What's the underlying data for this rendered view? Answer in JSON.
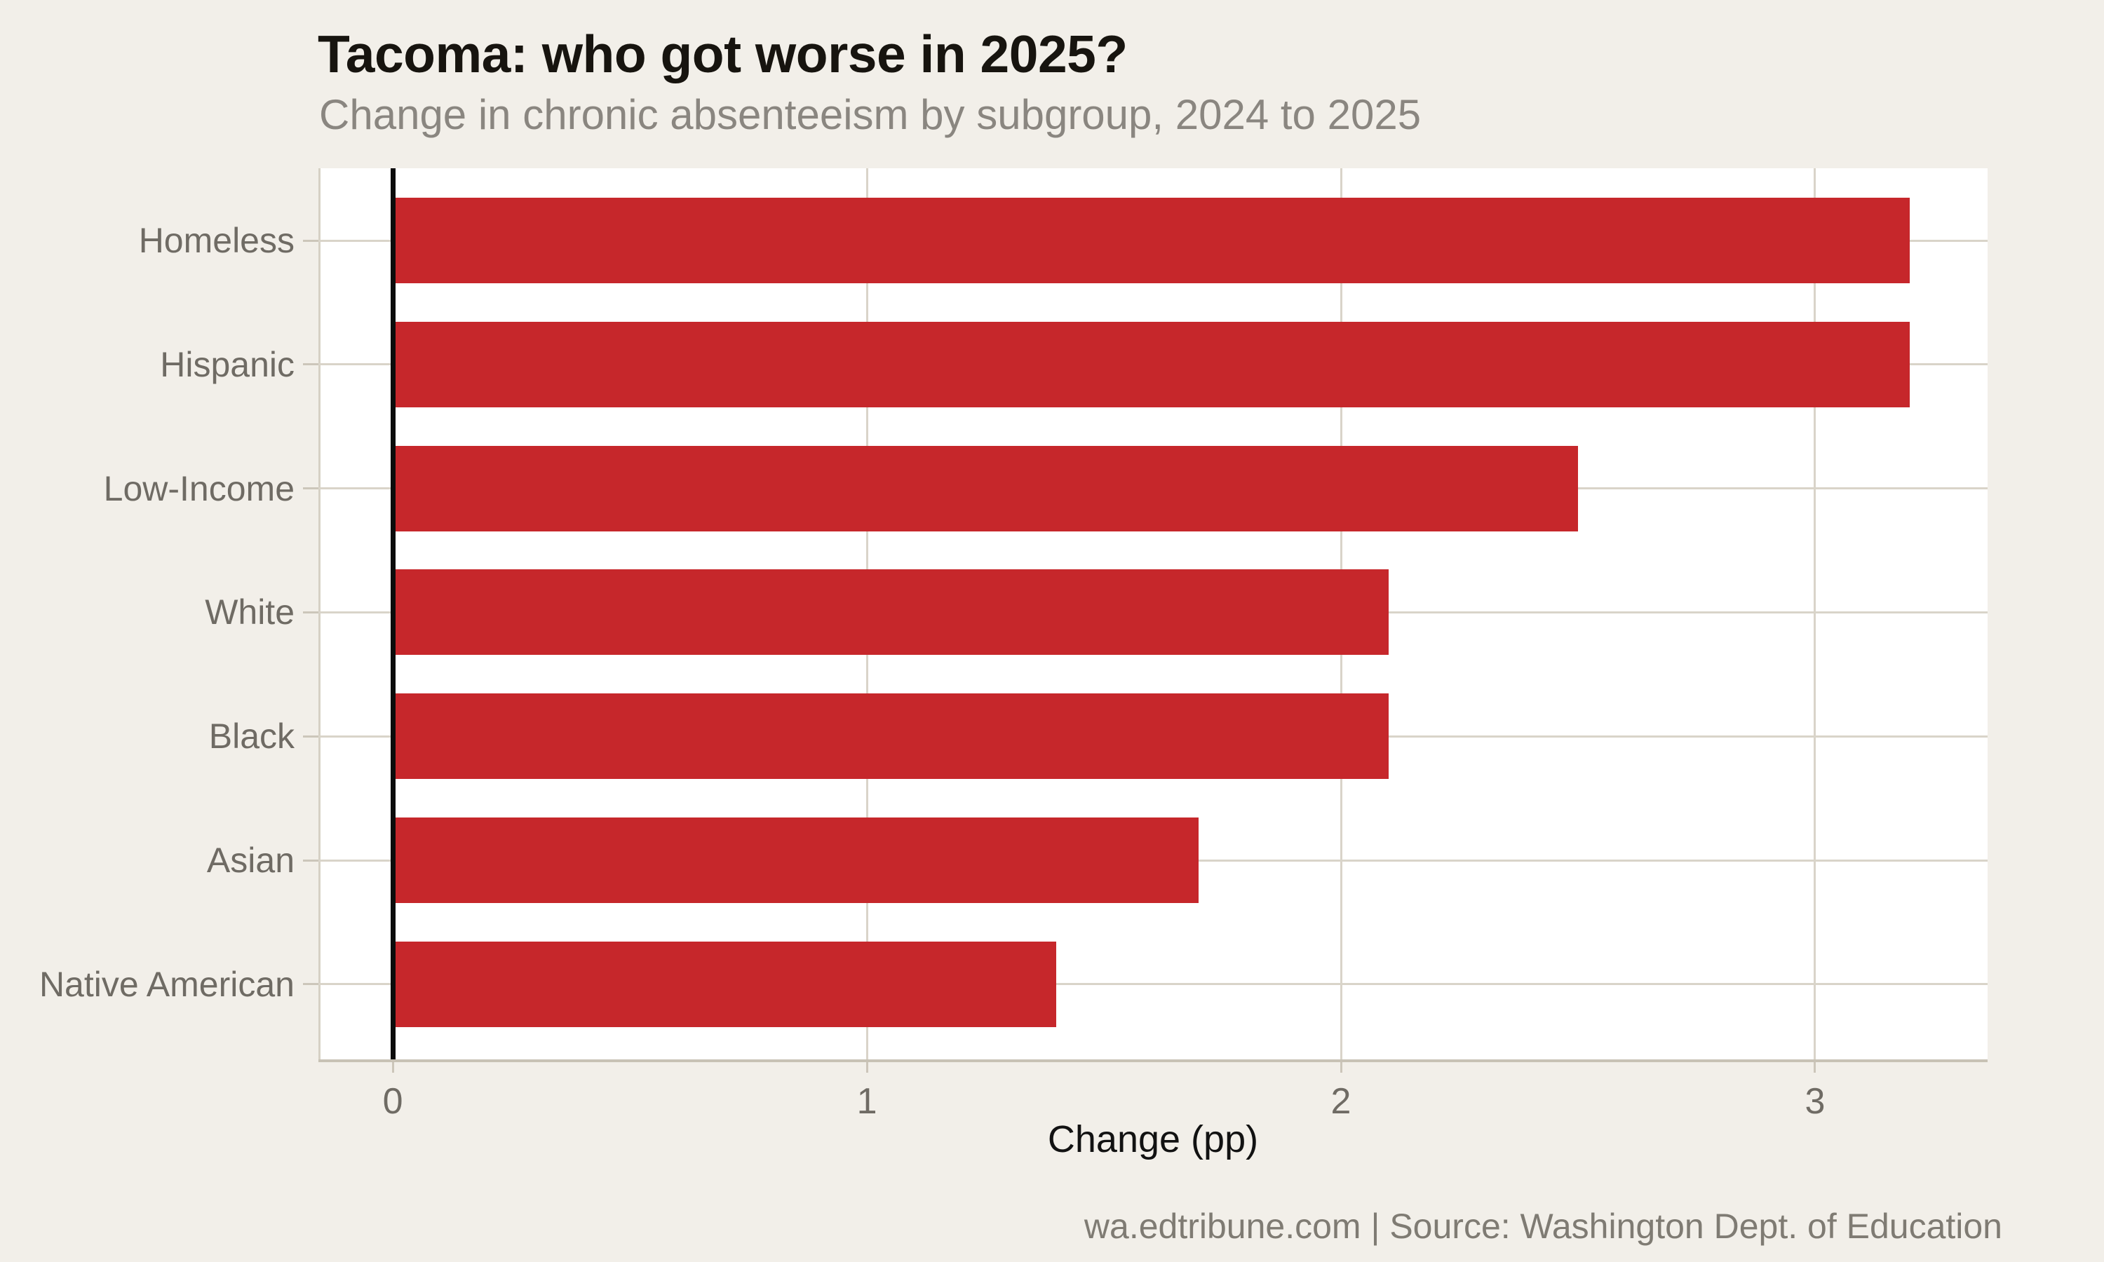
{
  "page": {
    "background": "#f2efe9"
  },
  "header": {
    "title": "Tacoma: who got worse in 2025?",
    "subtitle": "Change in chronic absenteeism by subgroup, 2024 to 2025"
  },
  "footer": {
    "text": "wa.edtribune.com | Source: Washington Dept. of Education"
  },
  "chart_data": {
    "type": "bar",
    "orientation": "horizontal",
    "title": "Tacoma: who got worse in 2025?",
    "subtitle": "Change in chronic absenteeism by subgroup, 2024 to 2025",
    "xlabel": "Change (pp)",
    "ylabel": "",
    "categories": [
      "Homeless",
      "Hispanic",
      "Low-Income",
      "White",
      "Black",
      "Asian",
      "Native American"
    ],
    "values": [
      3.2,
      3.2,
      2.5,
      2.1,
      2.1,
      1.7,
      1.4
    ],
    "xlim": [
      -0.157,
      3.364
    ],
    "xticks": [
      0,
      1,
      2,
      3
    ],
    "xtick_labels": [
      "0",
      "1",
      "2",
      "3"
    ],
    "grid": true,
    "legend": "none",
    "zero_line": true,
    "colors": {
      "bar": "#c6272b",
      "zero_line": "#0c0c0c",
      "plot_background": "#ffffff",
      "page_background": "#f2efe9",
      "gridline": "#d9d4c9",
      "axis_line": "#c8c2b5",
      "tick_mark": "#ccc6ba",
      "spine": "#d6d1c5",
      "axis_label_text": "#6f6b64",
      "title_text": "#17140f",
      "subtitle_text": "#8a8680",
      "xlabel_text": "#121212",
      "footer_text": "#7f7b73"
    }
  }
}
